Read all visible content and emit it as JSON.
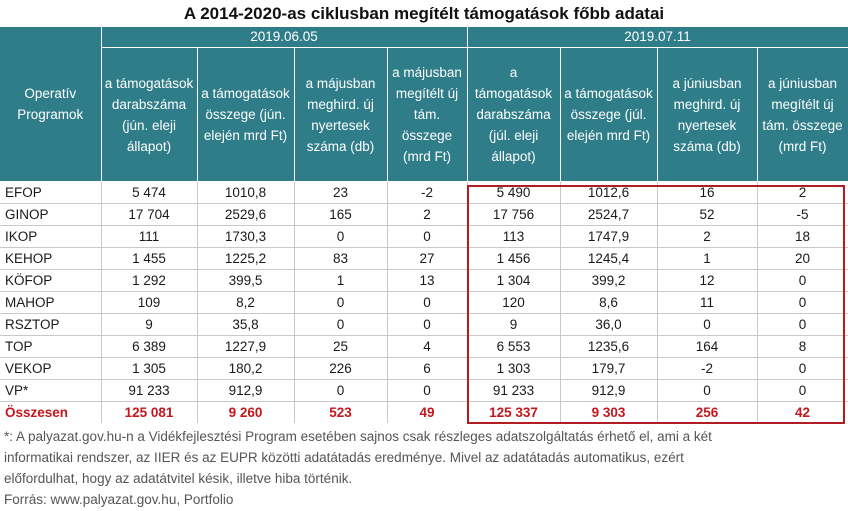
{
  "title": "A 2014-2020-as ciklusban megítélt támogatások főbb adatai",
  "header": {
    "program_label": "Operatív Programok",
    "date1": "2019.06.05",
    "date2": "2019.07.11",
    "columns": [
      "a támogatások darabszáma (jún. eleji állapot)",
      "a támogatások összege (jún. elején mrd Ft)",
      "a májusban meghird. új nyertesek száma (db)",
      "a májusban megítélt új tám. összege (mrd Ft)",
      "a támogatások darabszáma (júl. eleji állapot)",
      "a támogatások összege (júl. elején mrd Ft)",
      "a júniusban meghird. új nyertesek száma (db)",
      "a júniusban megítélt új tám. összege (mrd Ft)"
    ]
  },
  "rows": [
    {
      "name": "EFOP",
      "values": [
        "5 474",
        "1010,8",
        "23",
        "-2",
        "5 490",
        "1012,6",
        "16",
        "2"
      ]
    },
    {
      "name": "GINOP",
      "values": [
        "17 704",
        "2529,6",
        "165",
        "2",
        "17 756",
        "2524,7",
        "52",
        "-5"
      ]
    },
    {
      "name": "IKOP",
      "values": [
        "111",
        "1730,3",
        "0",
        "0",
        "113",
        "1747,9",
        "2",
        "18"
      ]
    },
    {
      "name": "KEHOP",
      "values": [
        "1 455",
        "1225,2",
        "83",
        "27",
        "1 456",
        "1245,4",
        "1",
        "20"
      ]
    },
    {
      "name": "KÖFOP",
      "values": [
        "1 292",
        "399,5",
        "1",
        "13",
        "1 304",
        "399,2",
        "12",
        "0"
      ]
    },
    {
      "name": "MAHOP",
      "values": [
        "109",
        "8,2",
        "0",
        "0",
        "120",
        "8,6",
        "11",
        "0"
      ]
    },
    {
      "name": "RSZTOP",
      "values": [
        "9",
        "35,8",
        "0",
        "0",
        "9",
        "36,0",
        "0",
        "0"
      ]
    },
    {
      "name": "TOP",
      "values": [
        "6 389",
        "1227,9",
        "25",
        "4",
        "6 553",
        "1235,6",
        "164",
        "8"
      ]
    },
    {
      "name": "VEKOP",
      "values": [
        "1 305",
        "180,2",
        "226",
        "6",
        "1 303",
        "179,7",
        "-2",
        "0"
      ]
    },
    {
      "name": "VP*",
      "values": [
        "91 233",
        "912,9",
        "0",
        "0",
        "91 233",
        "912,9",
        "0",
        "0"
      ]
    }
  ],
  "total": {
    "name": "Összesen",
    "values": [
      "125 081",
      "9 260",
      "523",
      "49",
      "125 337",
      "9 303",
      "256",
      "42"
    ]
  },
  "notes": [
    "*: A palyazat.gov.hu-n a Vidékfejlesztési Program esetében sajnos csak részleges adatszolgáltatás érhető el, ami a két",
    "informatikai rendszer, az IIER és az EUPR közötti adatátadás eredménye. Mivel az adatátadás automatikus, ezért",
    "előfordulhat, hogy az adatátvitel késik, illetve hiba történik.",
    "Forrás: www.palyazat.gov.hu, Portfolio"
  ],
  "colors": {
    "header_bg": "#2e7d89",
    "highlight_border": "#b01e23",
    "total_text": "#c4161c"
  }
}
